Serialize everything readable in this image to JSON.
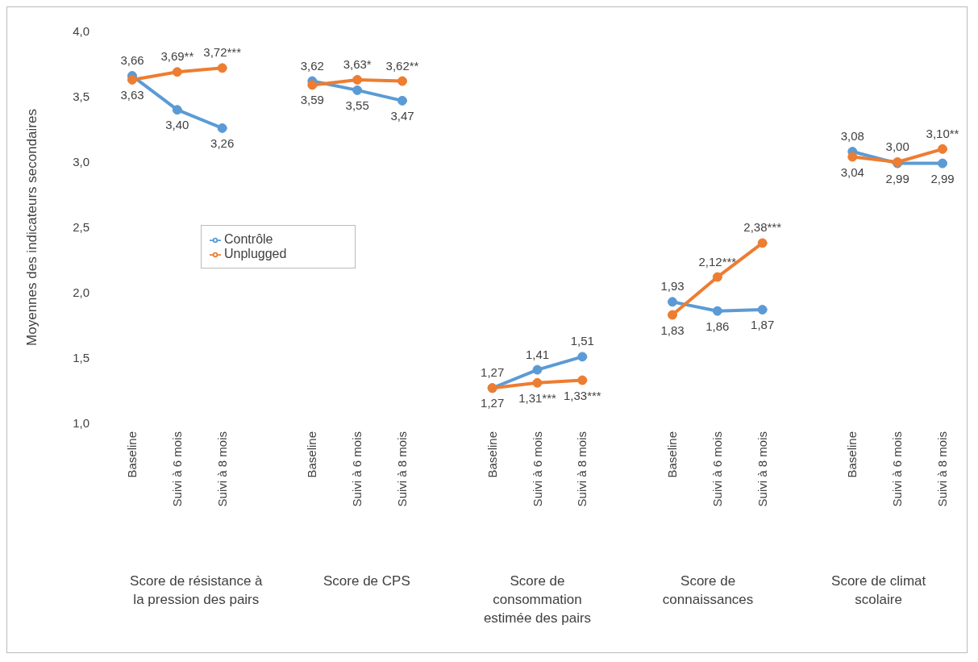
{
  "chart_data": {
    "type": "line",
    "ylabel": "Moyennes des indicateurs secondaires",
    "categories": [
      "Baseline",
      "Suivi à 6 mois",
      "Suivi à 8 mois",
      null,
      "Baseline",
      "Suivi à 6 mois",
      "Suivi à 8 mois",
      null,
      "Baseline",
      "Suivi à 6 mois",
      "Suivi à 8 mois",
      null,
      "Baseline",
      "Suivi à 6 mois",
      "Suivi à 8 mois",
      null,
      "Baseline",
      "Suivi à 6 mois",
      "Suivi à 8 mois"
    ],
    "series": [
      {
        "name": "Contrôle",
        "color": "#5b9bd5",
        "values": [
          3.66,
          3.4,
          3.26,
          null,
          3.62,
          3.55,
          3.47,
          null,
          1.27,
          1.41,
          1.51,
          null,
          1.93,
          1.86,
          1.87,
          null,
          3.08,
          2.99,
          2.99
        ],
        "value_labels": [
          "3,66",
          "3,40",
          "3,26",
          null,
          "3,62",
          "3,55",
          "3,47",
          null,
          "1,27",
          "1,41",
          "1,51",
          null,
          "1,93",
          "1,86",
          "1,87",
          null,
          "3,08",
          "2,99",
          "2,99"
        ]
      },
      {
        "name": "Unplugged",
        "color": "#ed7d31",
        "values": [
          3.63,
          3.69,
          3.72,
          null,
          3.59,
          3.63,
          3.62,
          null,
          1.27,
          1.31,
          1.33,
          null,
          1.83,
          2.12,
          2.38,
          null,
          3.04,
          3.0,
          3.1
        ],
        "value_labels": [
          "3,63",
          "3,69**",
          "3,72***",
          null,
          "3,59",
          "3,63*",
          "3,62**",
          null,
          "1,27",
          "1,31***",
          "1,33***",
          null,
          "1,83",
          "2,12***",
          "2,38***",
          null,
          "3,04",
          "3,00",
          "3,10**"
        ]
      }
    ],
    "ylim": [
      1,
      4
    ],
    "yticks": [
      {
        "value": 1,
        "label": "1,0"
      },
      {
        "value": 1.5,
        "label": "1,5"
      },
      {
        "value": 2,
        "label": "2,0"
      },
      {
        "value": 2.5,
        "label": "2,5"
      },
      {
        "value": 3,
        "label": "3,0"
      },
      {
        "value": 3.5,
        "label": "3,5"
      },
      {
        "value": 4,
        "label": "4,0"
      }
    ],
    "annotations": [
      "Score de résistance à la pression des pairs",
      "Score de CPS",
      "Score de consommation estimée des pairs",
      "Score de connaissances",
      "Score de climat scolaire"
    ],
    "legend": "left",
    "marker": "circle",
    "line_style": "solid",
    "grid": false
  }
}
